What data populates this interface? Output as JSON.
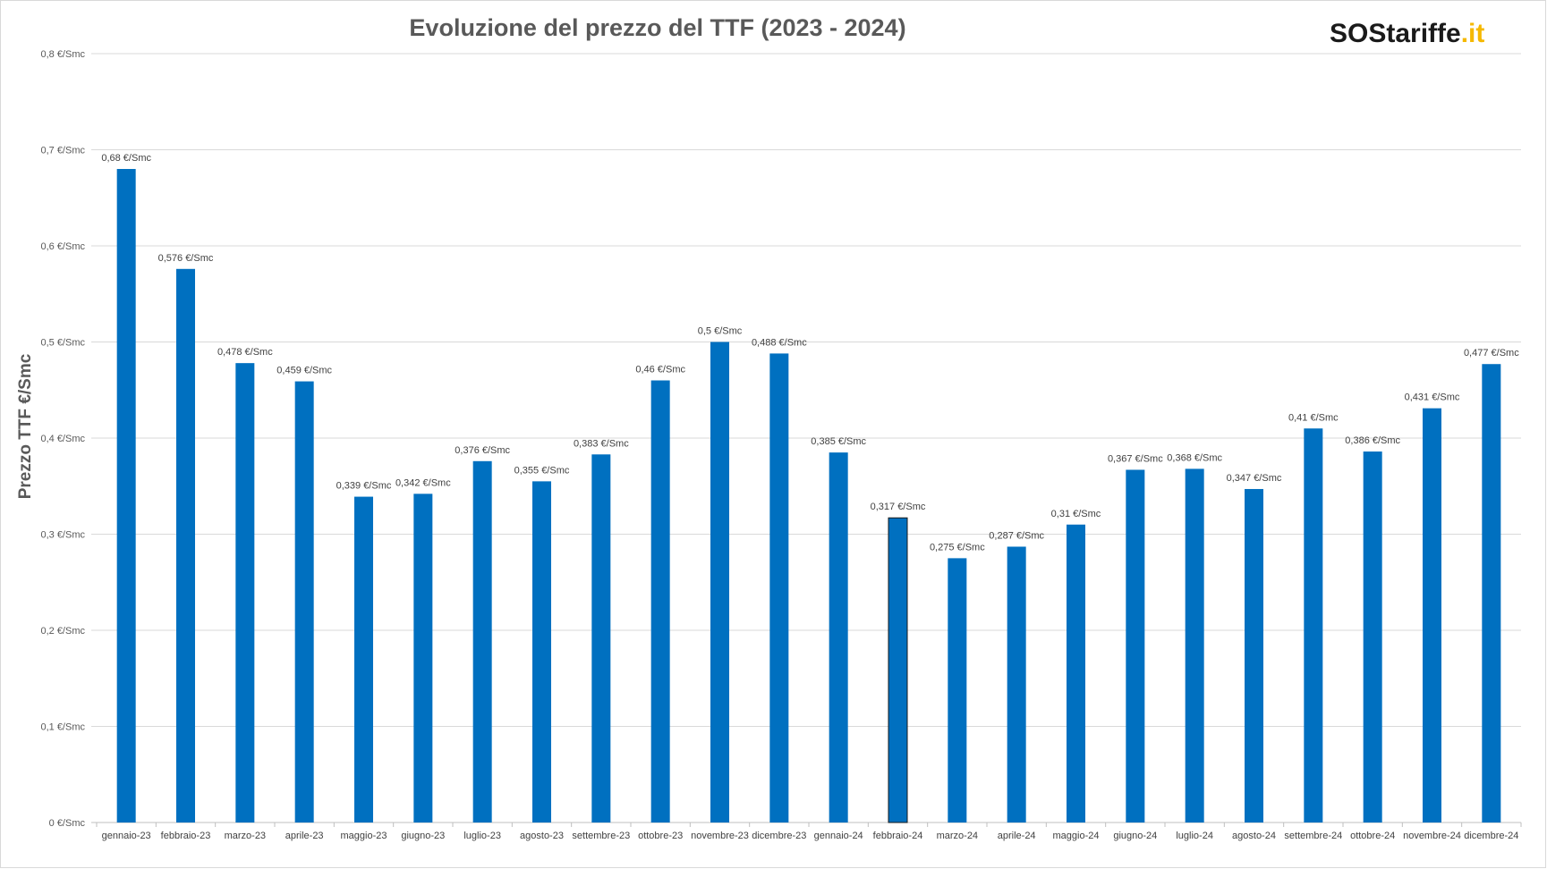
{
  "chart_data": {
    "type": "bar",
    "title": "Evoluzione del prezzo del TTF (2023 - 2024)",
    "xlabel": "",
    "ylabel": "Prezzo TTF €/Smc",
    "ylim": [
      0,
      0.8
    ],
    "yticks": [
      "0 €/Smc",
      "0,1 €/Smc",
      "0,2 €/Smc",
      "0,3 €/Smc",
      "0,4 €/Smc",
      "0,5 €/Smc",
      "0,6 €/Smc",
      "0,7 €/Smc",
      "0,8 €/Smc"
    ],
    "categories": [
      "gennaio-23",
      "febbraio-23",
      "marzo-23",
      "aprile-23",
      "maggio-23",
      "giugno-23",
      "luglio-23",
      "agosto-23",
      "settembre-23",
      "ottobre-23",
      "novembre-23",
      "dicembre-23",
      "gennaio-24",
      "febbraio-24",
      "marzo-24",
      "aprile-24",
      "maggio-24",
      "giugno-24",
      "luglio-24",
      "agosto-24",
      "settembre-24",
      "ottobre-24",
      "novembre-24",
      "dicembre-24"
    ],
    "values": [
      0.68,
      0.576,
      0.478,
      0.459,
      0.339,
      0.342,
      0.376,
      0.355,
      0.383,
      0.46,
      0.5,
      0.488,
      0.385,
      0.317,
      0.275,
      0.287,
      0.31,
      0.367,
      0.368,
      0.347,
      0.41,
      0.386,
      0.431,
      0.477
    ],
    "data_labels": [
      "0,68 €/Smc",
      "0,576 €/Smc",
      "0,478 €/Smc",
      "0,459 €/Smc",
      "0,339 €/Smc",
      "0,342 €/Smc",
      "0,376 €/Smc",
      "0,355 €/Smc",
      "0,383 €/Smc",
      "0,46 €/Smc",
      "0,5 €/Smc",
      "0,488 €/Smc",
      "0,385 €/Smc",
      "0,317 €/Smc",
      "0,275 €/Smc",
      "0,287 €/Smc",
      "0,31 €/Smc",
      "0,367 €/Smc",
      "0,368 €/Smc",
      "0,347 €/Smc",
      "0,41 €/Smc",
      "0,386 €/Smc",
      "0,431 €/Smc",
      "0,477 €/Smc"
    ],
    "grid": true,
    "legend": "none",
    "colors": {
      "bar": "#0070c0",
      "grid": "#d9d9d9"
    }
  },
  "logo": {
    "prefix": "SOS",
    "name": "tariffe",
    "suffix": ".it",
    "colors": {
      "dark": "#1a1a1a",
      "accent": "#f5b800"
    }
  }
}
